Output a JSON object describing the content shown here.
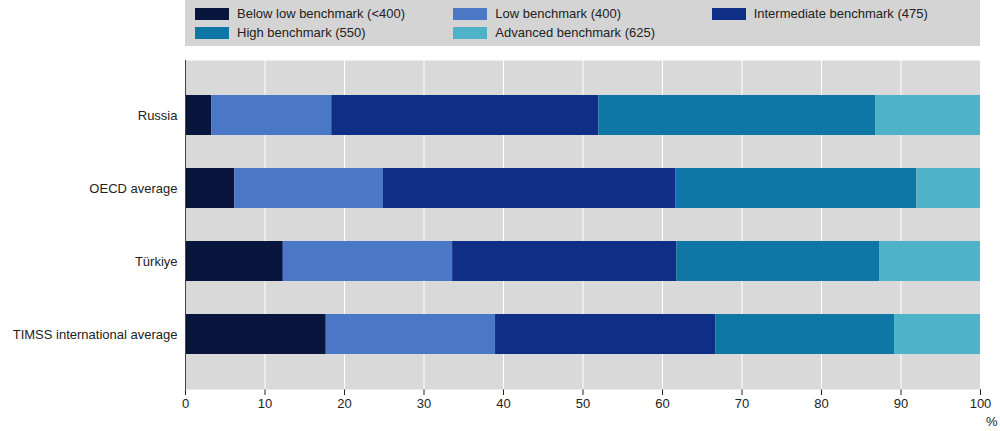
{
  "chart_data": {
    "type": "bar",
    "orientation": "horizontal",
    "stacked": true,
    "grid": true,
    "legend": "top",
    "categories": [
      "Russia",
      "OECD average",
      "Türkiye",
      "TIMSS international average"
    ],
    "series": [
      {
        "name": "Below low benchmark (<400)",
        "color": "#08163d",
        "values": [
          3.3,
          6.2,
          12.3,
          17.7
        ]
      },
      {
        "name": "Low benchmark (400)",
        "color": "#4a78c6",
        "values": [
          15.1,
          18.7,
          21.3,
          21.3
        ]
      },
      {
        "name": "Intermediate benchmark (475)",
        "color": "#0f2f86",
        "values": [
          33.6,
          36.8,
          28.2,
          27.7
        ]
      },
      {
        "name": "High benchmark (550)",
        "color": "#0f77a6",
        "values": [
          34.8,
          30.3,
          25.5,
          22.5
        ]
      },
      {
        "name": "Advanced benchmark (625)",
        "color": "#4eb3c9",
        "values": [
          13.2,
          8.0,
          12.7,
          10.8
        ]
      }
    ],
    "xlabel": "%",
    "xlim": [
      0,
      100
    ],
    "xticks": [
      0,
      10,
      20,
      30,
      40,
      50,
      60,
      70,
      80,
      90,
      100
    ]
  }
}
